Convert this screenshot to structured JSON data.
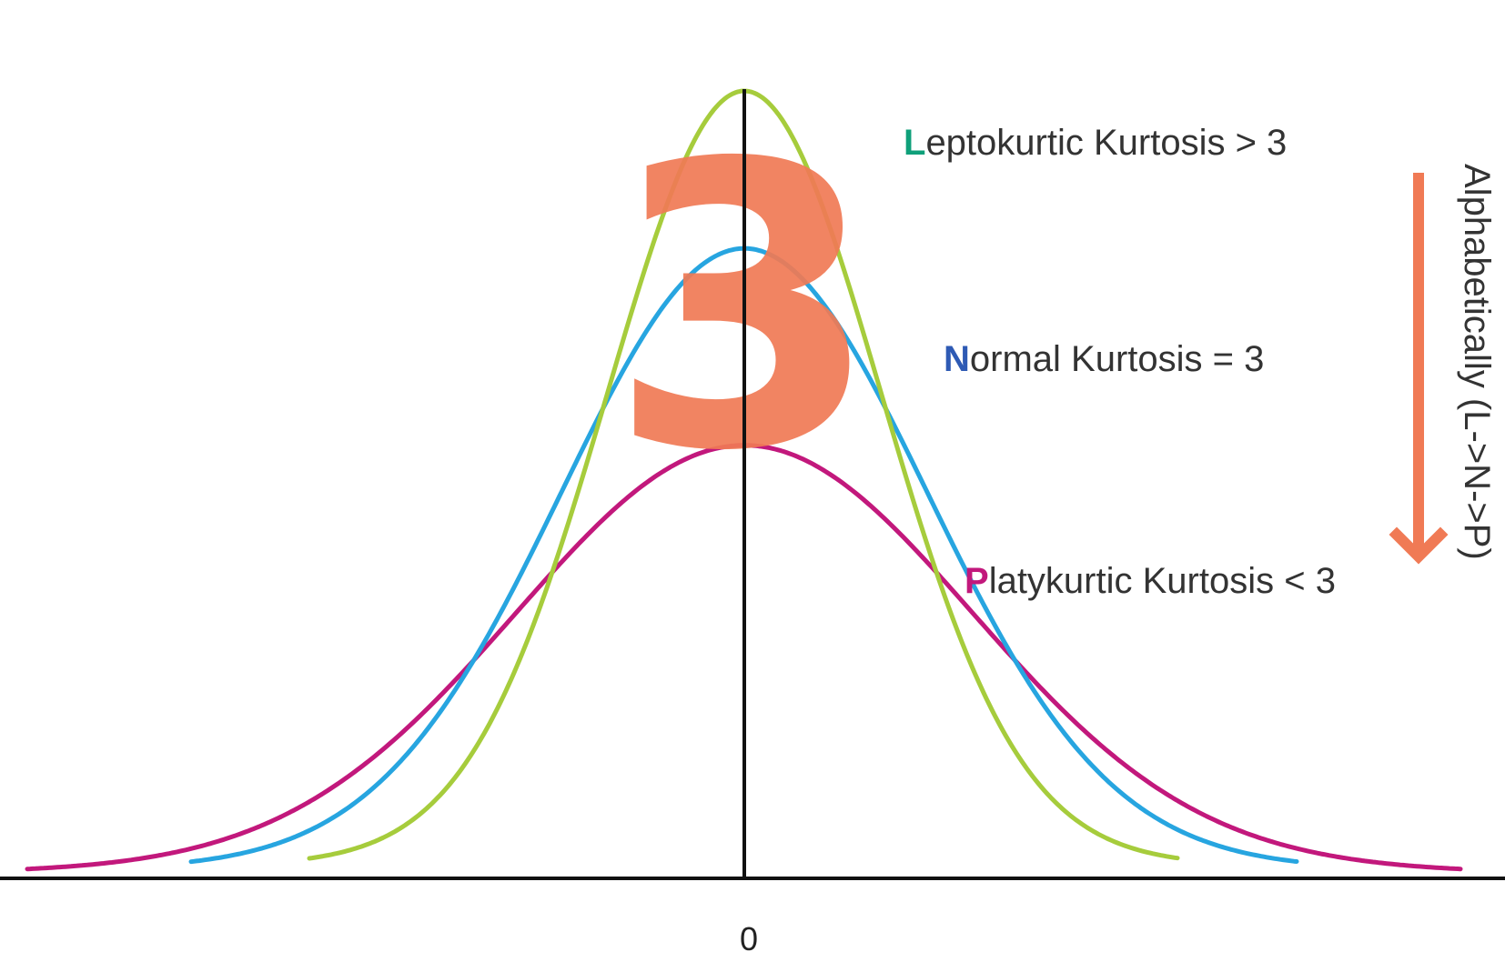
{
  "x_axis": {
    "tick_label": "0"
  },
  "labels": {
    "leptokurtic": {
      "initial": "L",
      "rest": "eptokurtic Kurtosis > 3",
      "color": "#0fa07a"
    },
    "normal": {
      "initial": "N",
      "rest": "ormal Kurtosis = 3",
      "color": "#2e5ab4"
    },
    "platykurtic": {
      "initial": "P",
      "rest": "latykurtic Kurtosis < 3",
      "color": "#c2187c"
    }
  },
  "side_note": {
    "text": "Alphabetically (L->N->P)"
  },
  "overlay": {
    "digit": "3",
    "color": "#f07a55"
  },
  "arrow": {
    "color": "#f07a55",
    "direction": "down"
  },
  "curves": [
    {
      "id": "leptokurtic",
      "color": "#a6cc3c",
      "peak": 1.0,
      "tail": "narrow"
    },
    {
      "id": "normal",
      "color": "#27a5e0",
      "peak": 0.8,
      "tail": "medium"
    },
    {
      "id": "platykurtic",
      "color": "#c2187c",
      "peak": 0.55,
      "tail": "wide"
    }
  ]
}
